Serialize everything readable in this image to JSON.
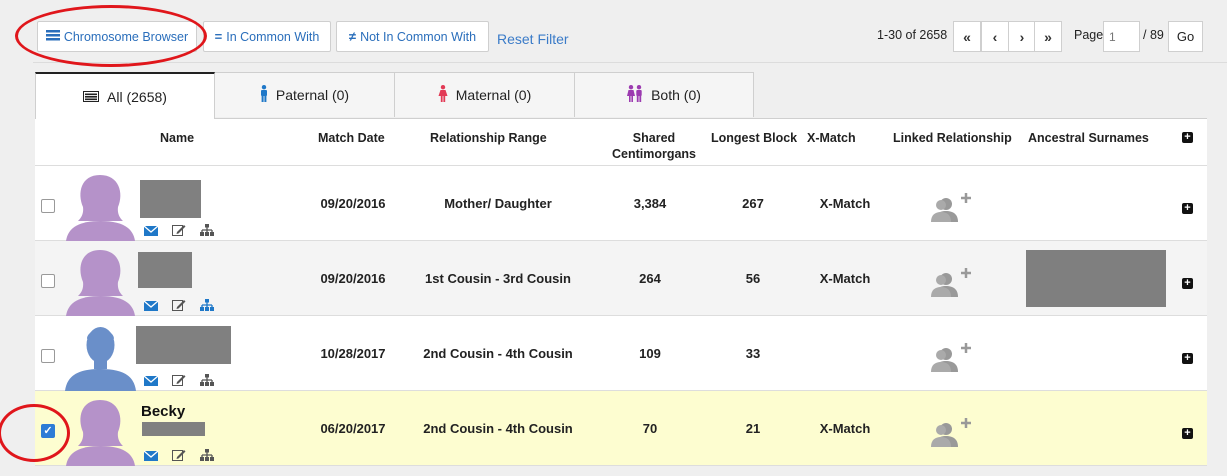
{
  "toolbar": {
    "chromosome_browser": "Chromosome Browser",
    "in_common_with": "In Common With",
    "not_in_common_with": "Not In Common With",
    "reset_filter": "Reset Filter"
  },
  "pagination": {
    "range": "1-30 of 2658",
    "first": "«",
    "prev": "‹",
    "next": "›",
    "last": "»",
    "page_label": "Page",
    "page_placeholder": "1",
    "total": "/ 89",
    "go": "Go"
  },
  "tabs": [
    {
      "label": "All (2658)"
    },
    {
      "label": "Paternal (0)"
    },
    {
      "label": "Maternal (0)"
    },
    {
      "label": "Both (0)"
    }
  ],
  "columns": {
    "name": "Name",
    "match_date": "Match Date",
    "relationship_range": "Relationship Range",
    "shared_cm_1": "Shared",
    "shared_cm_2": "Centimorgans",
    "longest_block": "Longest Block",
    "x_match": "X-Match",
    "linked_relationship": "Linked Relationship",
    "ancestral_surnames": "Ancestral Surnames"
  },
  "rows": [
    {
      "name": "",
      "match_date": "09/20/2016",
      "relationship": "Mother/ Daughter",
      "shared_cm": "3,384",
      "longest_block": "267",
      "x_match": "X-Match",
      "avatar": "female",
      "checked": false
    },
    {
      "name": "",
      "match_date": "09/20/2016",
      "relationship": "1st Cousin - 3rd Cousin",
      "shared_cm": "264",
      "longest_block": "56",
      "x_match": "X-Match",
      "avatar": "female",
      "checked": false
    },
    {
      "name": "",
      "match_date": "10/28/2017",
      "relationship": "2nd Cousin - 4th Cousin",
      "shared_cm": "109",
      "longest_block": "33",
      "x_match": "",
      "avatar": "male",
      "checked": false
    },
    {
      "name": "Becky",
      "match_date": "06/20/2017",
      "relationship": "2nd Cousin - 4th Cousin",
      "shared_cm": "70",
      "longest_block": "21",
      "x_match": "X-Match",
      "avatar": "female",
      "checked": true
    }
  ],
  "colors": {
    "link_blue": "#2a6ebb",
    "female_avatar": "#b592c9",
    "male_avatar": "#6a8fc9",
    "selected_row": "#fdfdd0",
    "annotation_red": "#e0161b"
  }
}
